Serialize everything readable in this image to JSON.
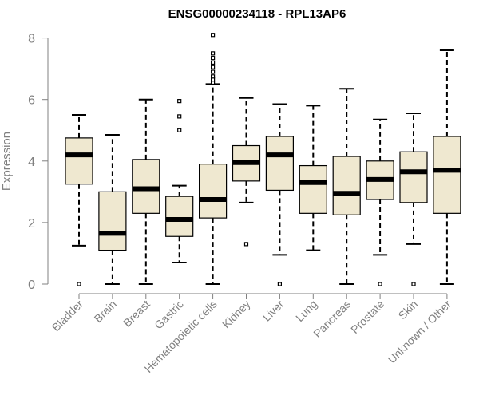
{
  "chart_data": {
    "type": "boxplot",
    "title": "ENSG00000234118 - RPL13AP6",
    "xlabel": "",
    "ylabel": "Expression",
    "ylim": [
      0,
      8.3
    ],
    "yticks": [
      0,
      2,
      4,
      6,
      8
    ],
    "box_color": "#efe8d0",
    "categories": [
      "Bladder",
      "Brain",
      "Breast",
      "Gastric",
      "Hematopoietic cells",
      "Kidney",
      "Liver",
      "Lung",
      "Pancreas",
      "Prostate",
      "Skin",
      "Unknown / Other"
    ],
    "boxes": [
      {
        "whisker_low": 1.25,
        "q1": 3.25,
        "median": 4.2,
        "q3": 4.75,
        "whisker_high": 5.5,
        "outliers": [
          0.0
        ]
      },
      {
        "whisker_low": 0.0,
        "q1": 1.1,
        "median": 1.65,
        "q3": 3.0,
        "whisker_high": 4.85,
        "outliers": []
      },
      {
        "whisker_low": 0.0,
        "q1": 2.3,
        "median": 3.1,
        "q3": 4.05,
        "whisker_high": 6.0,
        "outliers": []
      },
      {
        "whisker_low": 0.7,
        "q1": 1.55,
        "median": 2.1,
        "q3": 2.85,
        "whisker_high": 3.2,
        "outliers": [
          5.0,
          5.45,
          5.95
        ]
      },
      {
        "whisker_low": 0.0,
        "q1": 2.15,
        "median": 2.75,
        "q3": 3.9,
        "whisker_high": 6.5,
        "outliers": [
          6.55,
          6.65,
          6.75,
          6.9,
          7.05,
          7.2,
          7.35,
          7.5,
          8.1
        ]
      },
      {
        "whisker_low": 2.65,
        "q1": 3.35,
        "median": 3.95,
        "q3": 4.5,
        "whisker_high": 6.05,
        "outliers": [
          1.3
        ]
      },
      {
        "whisker_low": 0.95,
        "q1": 3.05,
        "median": 4.2,
        "q3": 4.8,
        "whisker_high": 5.85,
        "outliers": [
          0.0
        ]
      },
      {
        "whisker_low": 1.1,
        "q1": 2.3,
        "median": 3.3,
        "q3": 3.85,
        "whisker_high": 5.8,
        "outliers": []
      },
      {
        "whisker_low": 0.0,
        "q1": 2.25,
        "median": 2.95,
        "q3": 4.15,
        "whisker_high": 6.35,
        "outliers": []
      },
      {
        "whisker_low": 0.95,
        "q1": 2.75,
        "median": 3.4,
        "q3": 4.0,
        "whisker_high": 5.35,
        "outliers": [
          0.0
        ]
      },
      {
        "whisker_low": 1.3,
        "q1": 2.65,
        "median": 3.65,
        "q3": 4.3,
        "whisker_high": 5.55,
        "outliers": [
          0.0
        ]
      },
      {
        "whisker_low": 0.0,
        "q1": 2.3,
        "median": 3.7,
        "q3": 4.8,
        "whisker_high": 7.6,
        "outliers": []
      }
    ]
  }
}
